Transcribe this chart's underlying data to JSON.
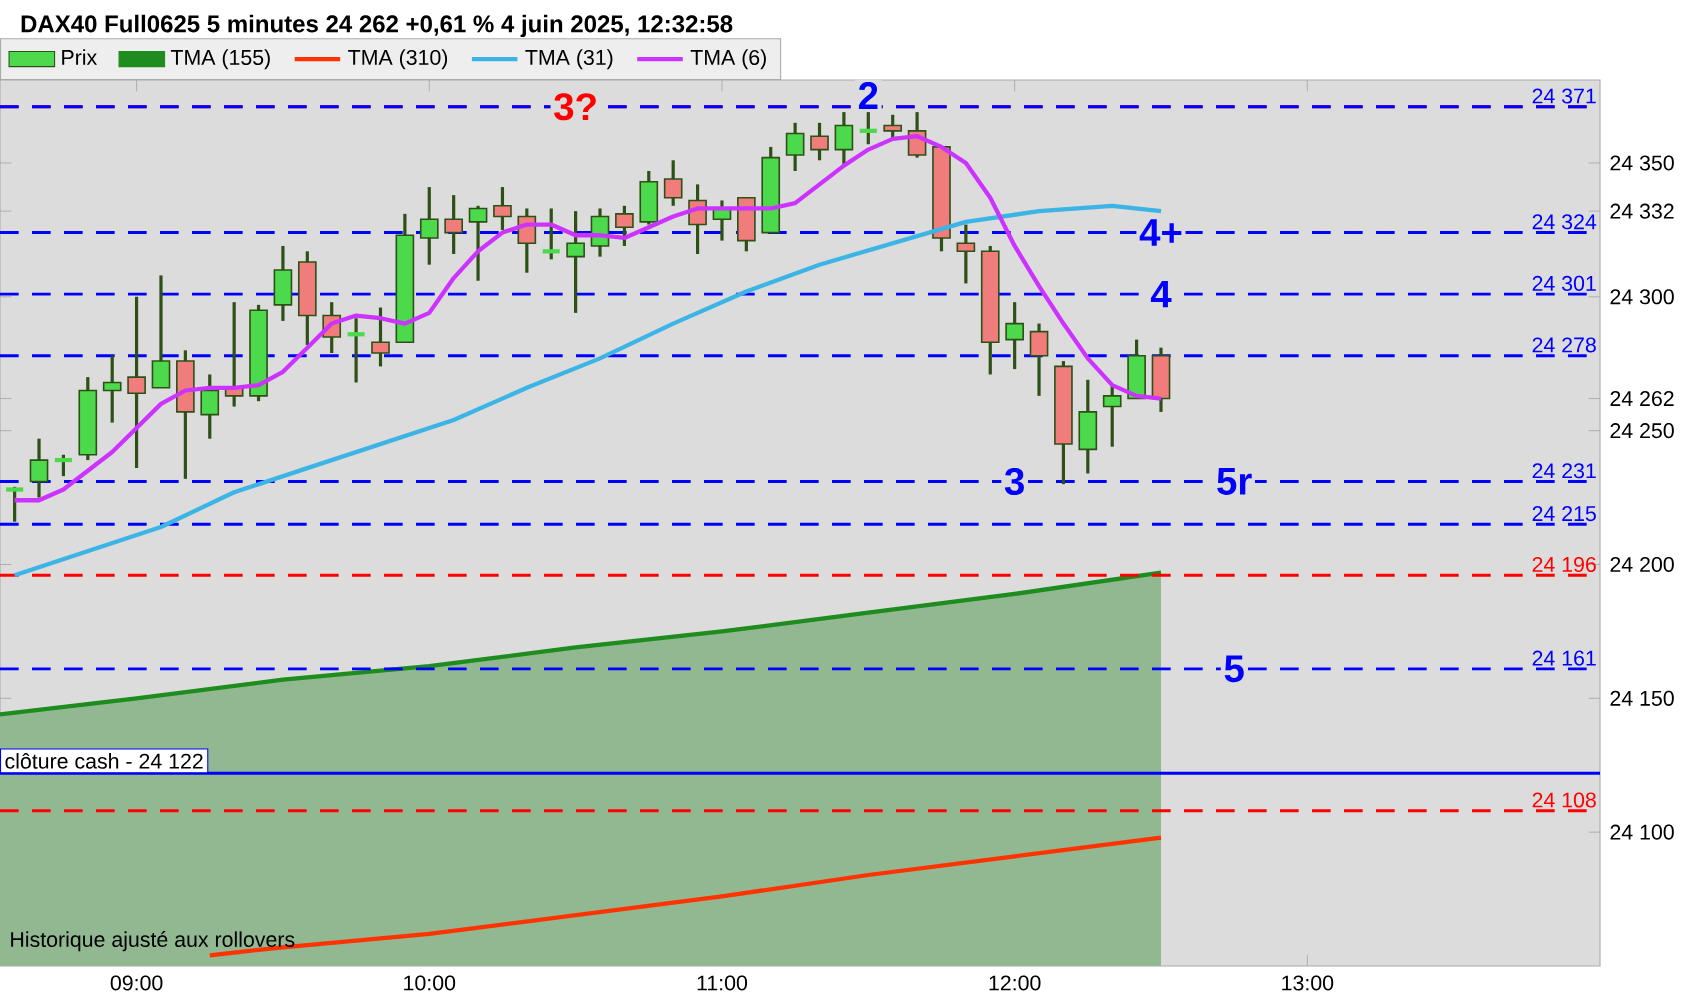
{
  "chart_data": {
    "type": "candlestick",
    "title": "DAX40 Full0625 5 minutes 24 262 +0,61 % 4 juin 2025, 12:32:58",
    "x": [
      "2025-06-04T08:35",
      "2025-06-04T08:40",
      "2025-06-04T08:45",
      "2025-06-04T08:50",
      "2025-06-04T08:55",
      "2025-06-04T09:00",
      "2025-06-04T09:05",
      "2025-06-04T09:10",
      "2025-06-04T09:15",
      "2025-06-04T09:20",
      "2025-06-04T09:25",
      "2025-06-04T09:30",
      "2025-06-04T09:35",
      "2025-06-04T09:40",
      "2025-06-04T09:45",
      "2025-06-04T09:50",
      "2025-06-04T09:55",
      "2025-06-04T10:00",
      "2025-06-04T10:05",
      "2025-06-04T10:10",
      "2025-06-04T10:15",
      "2025-06-04T10:20",
      "2025-06-04T10:25",
      "2025-06-04T10:30",
      "2025-06-04T10:35",
      "2025-06-04T10:40",
      "2025-06-04T10:45",
      "2025-06-04T10:50",
      "2025-06-04T10:55",
      "2025-06-04T11:00",
      "2025-06-04T11:05",
      "2025-06-04T11:10",
      "2025-06-04T11:15",
      "2025-06-04T11:20",
      "2025-06-04T11:25",
      "2025-06-04T11:30",
      "2025-06-04T11:35",
      "2025-06-04T11:40",
      "2025-06-04T11:45",
      "2025-06-04T11:50",
      "2025-06-04T11:55",
      "2025-06-04T12:00",
      "2025-06-04T12:05",
      "2025-06-04T12:10",
      "2025-06-04T12:15",
      "2025-06-04T12:20",
      "2025-06-04T12:25",
      "2025-06-04T12:30"
    ],
    "series": [
      {
        "name": "Prix",
        "colors": [
          "#4cd94c",
          "#4cd94c",
          "#4cd94c",
          "#4cd94c",
          "#4cd94c",
          "#f07c7c",
          "#4cd94c",
          "#f07c7c",
          "#4cd94c",
          "#f07c7c",
          "#4cd94c",
          "#4cd94c",
          "#f07c7c",
          "#f07c7c",
          "#4cd94c",
          "#f07c7c",
          "#4cd94c",
          "#4cd94c",
          "#f07c7c",
          "#4cd94c",
          "#f07c7c",
          "#f07c7c",
          "#4cd94c",
          "#4cd94c",
          "#4cd94c",
          "#f07c7c",
          "#4cd94c",
          "#f07c7c",
          "#f07c7c",
          "#4cd94c",
          "#f07c7c",
          "#4cd94c",
          "#4cd94c",
          "#f07c7c",
          "#4cd94c",
          "#4cd94c",
          "#f07c7c",
          "#f07c7c",
          "#f07c7c",
          "#f07c7c",
          "#f07c7c",
          "#4cd94c",
          "#f07c7c",
          "#f07c7c",
          "#4cd94c",
          "#4cd94c",
          "#4cd94c",
          "#f07c7c"
        ],
        "ohlc": [
          [
            24228,
            24229,
            24216,
            24228
          ],
          [
            24231,
            24247,
            24225,
            24239
          ],
          [
            24239,
            24241,
            24233,
            24239
          ],
          [
            24241,
            24270,
            24239,
            24265
          ],
          [
            24265,
            24278,
            24253,
            24268
          ],
          [
            24270,
            24300,
            24236,
            24264
          ],
          [
            24266,
            24308,
            24266,
            24276
          ],
          [
            24276,
            24280,
            24232,
            24257
          ],
          [
            24256,
            24271,
            24247,
            24265
          ],
          [
            24266,
            24298,
            24259,
            24263
          ],
          [
            24263,
            24297,
            24261,
            24295
          ],
          [
            24297,
            24319,
            24291,
            24310
          ],
          [
            24313,
            24317,
            24282,
            24293
          ],
          [
            24293,
            24298,
            24279,
            24285
          ],
          [
            24286,
            24292,
            24268,
            24286
          ],
          [
            24283,
            24296,
            24274,
            24279
          ],
          [
            24283,
            24331,
            24283,
            24323
          ],
          [
            24322,
            24341,
            24312,
            24329
          ],
          [
            24329,
            24338,
            24316,
            24324
          ],
          [
            24328,
            24334,
            24306,
            24333
          ],
          [
            24334,
            24341,
            24325,
            24330
          ],
          [
            24330,
            24333,
            24309,
            24320
          ],
          [
            24317,
            24333,
            24314,
            24317
          ],
          [
            24315,
            24332,
            24294,
            24320
          ],
          [
            24319,
            24333,
            24315,
            24330
          ],
          [
            24331,
            24334,
            24319,
            24326
          ],
          [
            24328,
            24347,
            24327,
            24343
          ],
          [
            24344,
            24351,
            24334,
            24337
          ],
          [
            24336,
            24342,
            24316,
            24327
          ],
          [
            24329,
            24336,
            24321,
            24333
          ],
          [
            24337,
            24337,
            24317,
            24321
          ],
          [
            24324,
            24356,
            24324,
            24352
          ],
          [
            24353,
            24365,
            24347,
            24361
          ],
          [
            24360,
            24365,
            24351,
            24355
          ],
          [
            24355,
            24369,
            24349,
            24364
          ],
          [
            24362,
            24369,
            24357,
            24362
          ],
          [
            24364,
            24368,
            24359,
            24362
          ],
          [
            24362,
            24369,
            24352,
            24353
          ],
          [
            24356,
            24356,
            24317,
            24322
          ],
          [
            24320,
            24327,
            24305,
            24317
          ],
          [
            24317,
            24319,
            24271,
            24283
          ],
          [
            24284,
            24298,
            24273,
            24290
          ],
          [
            24287,
            24290,
            24263,
            24278
          ],
          [
            24274,
            24276,
            24230,
            24245
          ],
          [
            24243,
            24269,
            24234,
            24257
          ],
          [
            24259,
            24267,
            24244,
            24263
          ],
          [
            24262,
            24284,
            24262,
            24278
          ],
          [
            24278,
            24281,
            24257,
            24262
          ]
        ]
      },
      {
        "name": "TMA (155)",
        "type": "area",
        "color": "#1e8c1e",
        "x": [
          "2025-06-04T08:32",
          "2025-06-04T09:00",
          "2025-06-04T09:30",
          "2025-06-04T10:00",
          "2025-06-04T10:30",
          "2025-06-04T11:00",
          "2025-06-04T11:30",
          "2025-06-04T12:00",
          "2025-06-04T12:30"
        ],
        "values": [
          24144,
          24150,
          24157,
          24162,
          24169,
          24175,
          24182,
          24189,
          24197
        ]
      },
      {
        "name": "TMA (310)",
        "type": "line",
        "color": "#ff3300",
        "x": [
          "2025-06-04T09:15",
          "2025-06-04T09:30",
          "2025-06-04T10:00",
          "2025-06-04T10:30",
          "2025-06-04T11:00",
          "2025-06-04T11:30",
          "2025-06-04T12:00",
          "2025-06-04T12:30"
        ],
        "values": [
          24054,
          24057,
          24062,
          24069,
          24076,
          24084,
          24091,
          24098
        ]
      },
      {
        "name": "TMA (31)",
        "type": "line",
        "color": "#3cb4e6",
        "x": [
          "2025-06-04T08:35",
          "2025-06-04T08:50",
          "2025-06-04T09:05",
          "2025-06-04T09:20",
          "2025-06-04T09:35",
          "2025-06-04T09:50",
          "2025-06-04T10:05",
          "2025-06-04T10:20",
          "2025-06-04T10:35",
          "2025-06-04T10:50",
          "2025-06-04T11:05",
          "2025-06-04T11:20",
          "2025-06-04T11:35",
          "2025-06-04T11:50",
          "2025-06-04T12:05",
          "2025-06-04T12:20",
          "2025-06-04T12:30"
        ],
        "values": [
          24196,
          24205,
          24214,
          24227,
          24236,
          24245,
          24254,
          24266,
          24277,
          24290,
          24302,
          24312,
          24320,
          24328,
          24332,
          24334,
          24332
        ]
      },
      {
        "name": "TMA (6)",
        "type": "line",
        "color": "#cc33ff",
        "values": [
          24224,
          24224,
          24228,
          24235,
          24242,
          24251,
          24260,
          24265,
          24266,
          24266,
          24267,
          24272,
          24281,
          24290,
          24293,
          24292,
          24290,
          24294,
          24307,
          24317,
          24324,
          24327,
          24327,
          24323,
          24323,
          24322,
          24326,
          24330,
          24333,
          24333,
          24333,
          24333,
          24335,
          24342,
          24349,
          24355,
          24359,
          24360,
          24356,
          24350,
          24337,
          24319,
          24304,
          24290,
          24277,
          24267,
          24263,
          24262
        ]
      }
    ],
    "xlim": [
      "2025-06-04T08:32",
      "2025-06-04T14:00"
    ],
    "xticks": [
      {
        "value": "2025-06-04T09:00",
        "label": "09:00"
      },
      {
        "value": "2025-06-04T10:00",
        "label": "10:00"
      },
      {
        "value": "2025-06-04T11:00",
        "label": "11:00"
      },
      {
        "value": "2025-06-04T12:00",
        "label": "12:00"
      },
      {
        "value": "2025-06-04T13:00",
        "label": "13:00"
      }
    ],
    "ylim": [
      24050,
      24381
    ],
    "yticks": [
      {
        "value": 24100,
        "label": "24 100"
      },
      {
        "value": 24150,
        "label": "24 150"
      },
      {
        "value": 24200,
        "label": "24 200"
      },
      {
        "value": 24250,
        "label": "24 250"
      },
      {
        "value": 24262,
        "label": "24 262"
      },
      {
        "value": 24300,
        "label": "24 300"
      },
      {
        "value": 24332,
        "label": "24 332"
      },
      {
        "value": 24350,
        "label": "24 350"
      }
    ],
    "ref_lines": [
      {
        "axis": "y",
        "value": 24371,
        "label": null,
        "color": "#ff0000",
        "line_style": "dashed"
      },
      {
        "axis": "y",
        "value": 24371,
        "label": "24 371",
        "color": "#0000ff",
        "line_style": "dashed"
      },
      {
        "axis": "y",
        "value": 24324,
        "label": "24 324",
        "color": "#0000ff",
        "line_style": "dashed"
      },
      {
        "axis": "y",
        "value": 24301,
        "label": "24 301",
        "color": "#0000ff",
        "line_style": "dashed"
      },
      {
        "axis": "y",
        "value": 24278,
        "label": "24 278",
        "color": "#0000ff",
        "line_style": "dashed"
      },
      {
        "axis": "y",
        "value": 24231,
        "label": "24 231",
        "color": "#0000ff",
        "line_style": "dashed"
      },
      {
        "axis": "y",
        "value": 24215,
        "label": "24 215",
        "color": "#0000ff",
        "line_style": "dashed"
      },
      {
        "axis": "y",
        "value": 24196,
        "label": "24 196",
        "color": "#ff0000",
        "line_style": "dashed"
      },
      {
        "axis": "y",
        "value": 24161,
        "label": "24 161",
        "color": "#0000ff",
        "line_style": "dashed"
      },
      {
        "axis": "y",
        "value": 24122,
        "label": "clôture cash -  24 122",
        "color": "#0000ff",
        "line_style": "solid"
      },
      {
        "axis": "y",
        "value": 24108,
        "label": "24 108",
        "color": "#ff0000",
        "line_style": "dashed"
      }
    ],
    "annotations": [
      {
        "text": "3?",
        "x": "2025-06-04T10:30",
        "y": 24371
      },
      {
        "text": "2",
        "x": "2025-06-04T11:30",
        "y": 24369
      },
      {
        "text": "4+",
        "x": "2025-06-04T12:30",
        "y": 24324
      },
      {
        "text": "4",
        "x": "2025-06-04T12:30",
        "y": 24301
      },
      {
        "text": "3",
        "x": "2025-06-04T12:00",
        "y": 24231
      },
      {
        "text": "5r",
        "x": "2025-06-04T12:45",
        "y": 24231
      },
      {
        "text": "5",
        "x": "2025-06-04T12:45",
        "y": 24161
      },
      "Historique ajusté aux rollovers"
    ],
    "legend": "top left"
  }
}
